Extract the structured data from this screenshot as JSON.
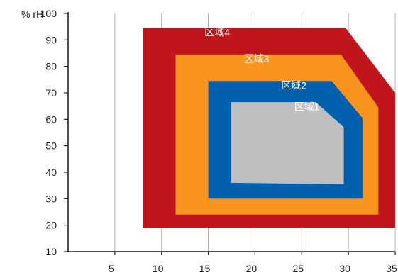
{
  "chart_data": {
    "type": "area",
    "ylabel": "% rH",
    "xlabel": "",
    "xlim": [
      0,
      35
    ],
    "ylim": [
      10,
      100
    ],
    "xticks": [
      5,
      10,
      15,
      20,
      25,
      30,
      35
    ],
    "yticks": [
      10,
      20,
      30,
      40,
      50,
      60,
      70,
      80,
      90,
      100
    ],
    "grid": true,
    "series": [
      {
        "name": "区域4",
        "color": "#c1141b",
        "points": [
          [
            8,
            19
          ],
          [
            8,
            94.5
          ],
          [
            29.7,
            94.5
          ],
          [
            35,
            70
          ],
          [
            35,
            19
          ]
        ]
      },
      {
        "name": "区域3",
        "color": "#f7941d",
        "points": [
          [
            11.5,
            24
          ],
          [
            11.5,
            84.5
          ],
          [
            29.2,
            84.5
          ],
          [
            33.2,
            64.5
          ],
          [
            33.2,
            24
          ]
        ]
      },
      {
        "name": "区域2",
        "color": "#0060ad",
        "points": [
          [
            15,
            30
          ],
          [
            15,
            74.5
          ],
          [
            28.2,
            74.5
          ],
          [
            31.5,
            60.5
          ],
          [
            31.5,
            30
          ]
        ]
      },
      {
        "name": "区域1",
        "color": "#bcbec0",
        "points": [
          [
            17.4,
            36
          ],
          [
            17.4,
            66.5
          ],
          [
            26.5,
            66.5
          ],
          [
            29.5,
            57
          ],
          [
            29.5,
            35.5
          ]
        ]
      }
    ],
    "zone_labels": [
      {
        "text": "区域4",
        "x": 14.6,
        "y": 91.5
      },
      {
        "text": "区域3",
        "x": 18.8,
        "y": 81.5
      },
      {
        "text": "区域2",
        "x": 22.8,
        "y": 71.5
      },
      {
        "text": "区域1",
        "x": 24.2,
        "y": 63.5
      }
    ]
  }
}
